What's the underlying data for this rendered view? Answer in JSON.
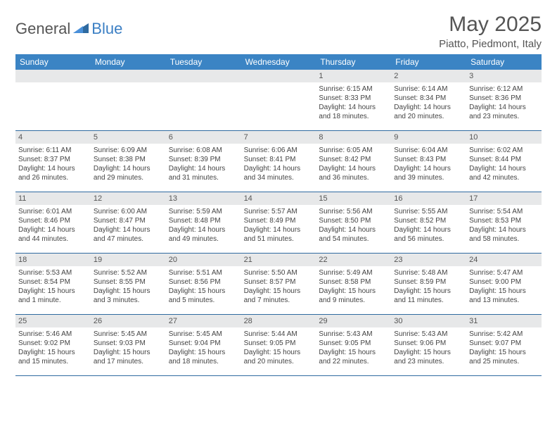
{
  "brand": {
    "text_general": "General",
    "text_blue": "Blue",
    "logo_color": "#2f6aa0"
  },
  "header": {
    "month_title": "May 2025",
    "location": "Piatto, Piedmont, Italy"
  },
  "colors": {
    "header_bg": "#3b84c4",
    "header_text": "#ffffff",
    "daynum_bg": "#e7e8e9",
    "border": "#2f6aa0",
    "text": "#444444"
  },
  "day_headers": [
    "Sunday",
    "Monday",
    "Tuesday",
    "Wednesday",
    "Thursday",
    "Friday",
    "Saturday"
  ],
  "weeks": [
    [
      {
        "day": "",
        "sunrise": "",
        "sunset": "",
        "daylight": ""
      },
      {
        "day": "",
        "sunrise": "",
        "sunset": "",
        "daylight": ""
      },
      {
        "day": "",
        "sunrise": "",
        "sunset": "",
        "daylight": ""
      },
      {
        "day": "",
        "sunrise": "",
        "sunset": "",
        "daylight": ""
      },
      {
        "day": "1",
        "sunrise": "Sunrise: 6:15 AM",
        "sunset": "Sunset: 8:33 PM",
        "daylight": "Daylight: 14 hours and 18 minutes."
      },
      {
        "day": "2",
        "sunrise": "Sunrise: 6:14 AM",
        "sunset": "Sunset: 8:34 PM",
        "daylight": "Daylight: 14 hours and 20 minutes."
      },
      {
        "day": "3",
        "sunrise": "Sunrise: 6:12 AM",
        "sunset": "Sunset: 8:36 PM",
        "daylight": "Daylight: 14 hours and 23 minutes."
      }
    ],
    [
      {
        "day": "4",
        "sunrise": "Sunrise: 6:11 AM",
        "sunset": "Sunset: 8:37 PM",
        "daylight": "Daylight: 14 hours and 26 minutes."
      },
      {
        "day": "5",
        "sunrise": "Sunrise: 6:09 AM",
        "sunset": "Sunset: 8:38 PM",
        "daylight": "Daylight: 14 hours and 29 minutes."
      },
      {
        "day": "6",
        "sunrise": "Sunrise: 6:08 AM",
        "sunset": "Sunset: 8:39 PM",
        "daylight": "Daylight: 14 hours and 31 minutes."
      },
      {
        "day": "7",
        "sunrise": "Sunrise: 6:06 AM",
        "sunset": "Sunset: 8:41 PM",
        "daylight": "Daylight: 14 hours and 34 minutes."
      },
      {
        "day": "8",
        "sunrise": "Sunrise: 6:05 AM",
        "sunset": "Sunset: 8:42 PM",
        "daylight": "Daylight: 14 hours and 36 minutes."
      },
      {
        "day": "9",
        "sunrise": "Sunrise: 6:04 AM",
        "sunset": "Sunset: 8:43 PM",
        "daylight": "Daylight: 14 hours and 39 minutes."
      },
      {
        "day": "10",
        "sunrise": "Sunrise: 6:02 AM",
        "sunset": "Sunset: 8:44 PM",
        "daylight": "Daylight: 14 hours and 42 minutes."
      }
    ],
    [
      {
        "day": "11",
        "sunrise": "Sunrise: 6:01 AM",
        "sunset": "Sunset: 8:46 PM",
        "daylight": "Daylight: 14 hours and 44 minutes."
      },
      {
        "day": "12",
        "sunrise": "Sunrise: 6:00 AM",
        "sunset": "Sunset: 8:47 PM",
        "daylight": "Daylight: 14 hours and 47 minutes."
      },
      {
        "day": "13",
        "sunrise": "Sunrise: 5:59 AM",
        "sunset": "Sunset: 8:48 PM",
        "daylight": "Daylight: 14 hours and 49 minutes."
      },
      {
        "day": "14",
        "sunrise": "Sunrise: 5:57 AM",
        "sunset": "Sunset: 8:49 PM",
        "daylight": "Daylight: 14 hours and 51 minutes."
      },
      {
        "day": "15",
        "sunrise": "Sunrise: 5:56 AM",
        "sunset": "Sunset: 8:50 PM",
        "daylight": "Daylight: 14 hours and 54 minutes."
      },
      {
        "day": "16",
        "sunrise": "Sunrise: 5:55 AM",
        "sunset": "Sunset: 8:52 PM",
        "daylight": "Daylight: 14 hours and 56 minutes."
      },
      {
        "day": "17",
        "sunrise": "Sunrise: 5:54 AM",
        "sunset": "Sunset: 8:53 PM",
        "daylight": "Daylight: 14 hours and 58 minutes."
      }
    ],
    [
      {
        "day": "18",
        "sunrise": "Sunrise: 5:53 AM",
        "sunset": "Sunset: 8:54 PM",
        "daylight": "Daylight: 15 hours and 1 minute."
      },
      {
        "day": "19",
        "sunrise": "Sunrise: 5:52 AM",
        "sunset": "Sunset: 8:55 PM",
        "daylight": "Daylight: 15 hours and 3 minutes."
      },
      {
        "day": "20",
        "sunrise": "Sunrise: 5:51 AM",
        "sunset": "Sunset: 8:56 PM",
        "daylight": "Daylight: 15 hours and 5 minutes."
      },
      {
        "day": "21",
        "sunrise": "Sunrise: 5:50 AM",
        "sunset": "Sunset: 8:57 PM",
        "daylight": "Daylight: 15 hours and 7 minutes."
      },
      {
        "day": "22",
        "sunrise": "Sunrise: 5:49 AM",
        "sunset": "Sunset: 8:58 PM",
        "daylight": "Daylight: 15 hours and 9 minutes."
      },
      {
        "day": "23",
        "sunrise": "Sunrise: 5:48 AM",
        "sunset": "Sunset: 8:59 PM",
        "daylight": "Daylight: 15 hours and 11 minutes."
      },
      {
        "day": "24",
        "sunrise": "Sunrise: 5:47 AM",
        "sunset": "Sunset: 9:00 PM",
        "daylight": "Daylight: 15 hours and 13 minutes."
      }
    ],
    [
      {
        "day": "25",
        "sunrise": "Sunrise: 5:46 AM",
        "sunset": "Sunset: 9:02 PM",
        "daylight": "Daylight: 15 hours and 15 minutes."
      },
      {
        "day": "26",
        "sunrise": "Sunrise: 5:45 AM",
        "sunset": "Sunset: 9:03 PM",
        "daylight": "Daylight: 15 hours and 17 minutes."
      },
      {
        "day": "27",
        "sunrise": "Sunrise: 5:45 AM",
        "sunset": "Sunset: 9:04 PM",
        "daylight": "Daylight: 15 hours and 18 minutes."
      },
      {
        "day": "28",
        "sunrise": "Sunrise: 5:44 AM",
        "sunset": "Sunset: 9:05 PM",
        "daylight": "Daylight: 15 hours and 20 minutes."
      },
      {
        "day": "29",
        "sunrise": "Sunrise: 5:43 AM",
        "sunset": "Sunset: 9:05 PM",
        "daylight": "Daylight: 15 hours and 22 minutes."
      },
      {
        "day": "30",
        "sunrise": "Sunrise: 5:43 AM",
        "sunset": "Sunset: 9:06 PM",
        "daylight": "Daylight: 15 hours and 23 minutes."
      },
      {
        "day": "31",
        "sunrise": "Sunrise: 5:42 AM",
        "sunset": "Sunset: 9:07 PM",
        "daylight": "Daylight: 15 hours and 25 minutes."
      }
    ]
  ]
}
